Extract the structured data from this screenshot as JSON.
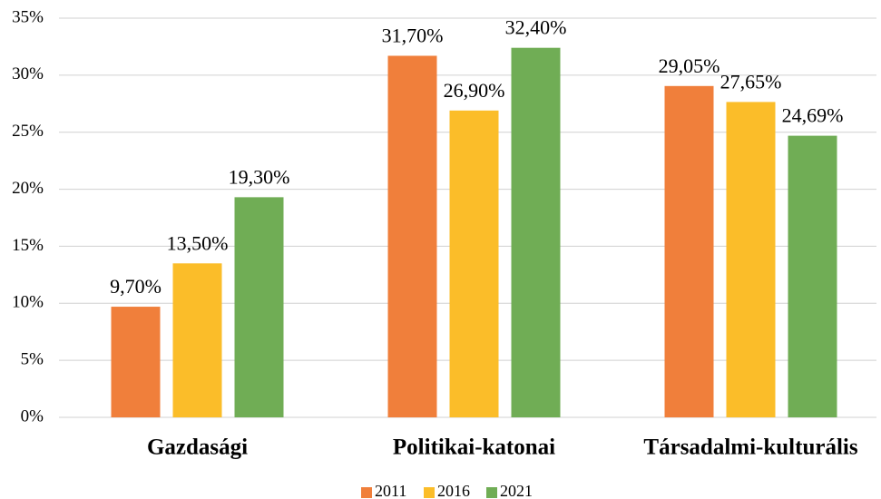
{
  "chart_data": {
    "type": "bar",
    "categories": [
      "Gazdasági",
      "Politikai-katonai",
      "Társadalmi-kulturális"
    ],
    "series": [
      {
        "name": "2011",
        "color": "#f07f3b",
        "values": [
          9.7,
          31.7,
          29.05
        ],
        "value_labels": [
          "9,70%",
          "31,70%",
          "29,05%"
        ]
      },
      {
        "name": "2016",
        "color": "#fbbd29",
        "values": [
          13.5,
          26.9,
          27.65
        ],
        "value_labels": [
          "13,50%",
          "26,90%",
          "27,65%"
        ]
      },
      {
        "name": "2021",
        "color": "#70ad55",
        "values": [
          19.3,
          32.4,
          24.69
        ],
        "value_labels": [
          "19,30%",
          "32,40%",
          "24,69%"
        ]
      }
    ],
    "ylim": [
      0,
      35
    ],
    "yticks": [
      {
        "value": 0,
        "label": "0%"
      },
      {
        "value": 5,
        "label": "5%"
      },
      {
        "value": 10,
        "label": "10%"
      },
      {
        "value": 15,
        "label": "15%"
      },
      {
        "value": 20,
        "label": "20%"
      },
      {
        "value": 25,
        "label": "25%"
      },
      {
        "value": 30,
        "label": "30%"
      },
      {
        "value": 35,
        "label": "35%"
      }
    ],
    "grid": true,
    "legend": "bottom"
  }
}
